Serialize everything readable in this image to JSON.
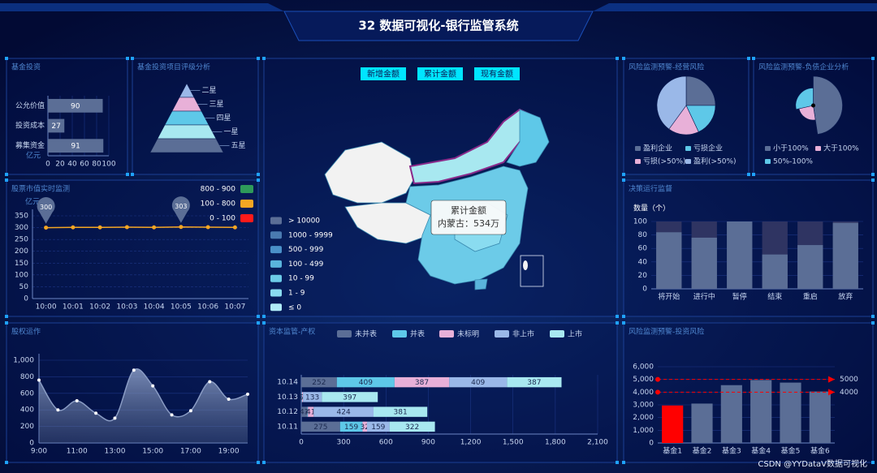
{
  "header": {
    "title": "32 数据可视化-银行监管系统"
  },
  "watermark": "CSDN @YYDataV数据可视化",
  "chart_data": [
    {
      "type": "bar",
      "orientation": "horizontal",
      "title": "基金投资",
      "categories": [
        "募集资金",
        "投资成本",
        "公允价值"
      ],
      "values": [
        91,
        27,
        90
      ],
      "unit": "亿元",
      "xlim": [
        0,
        100
      ],
      "xticks": [
        0,
        20,
        40,
        60,
        80,
        100
      ],
      "color": "#5b6e96",
      "labels": true,
      "label_color": "#ffffff"
    },
    {
      "type": "funnel",
      "title": "基金投资项目评级分析",
      "categories": [
        "二星",
        "三星",
        "四星",
        "一星",
        "五星"
      ],
      "values": [
        20,
        40,
        60,
        80,
        100
      ],
      "colors": [
        "#9ab8e8",
        "#e8b0d8",
        "#5ec8e8",
        "#a8e8f0",
        "#5b6e96"
      ]
    },
    {
      "type": "line",
      "title": "股票市值实时监测",
      "unit": "亿元",
      "categories": [
        "10:00",
        "10:01",
        "10:02",
        "10:03",
        "10:04",
        "10:05",
        "10:06",
        "10:07"
      ],
      "values": [
        300,
        301,
        301,
        302,
        301,
        303,
        302,
        301
      ],
      "ylim": [
        0,
        350
      ],
      "yticks": [
        0,
        50,
        100,
        150,
        200,
        250,
        300,
        350
      ],
      "color": "#f5a623",
      "grid": true,
      "pieces": [
        {
          "label": "800 - 900",
          "color": "#2e9a5a"
        },
        {
          "label": "100 - 800",
          "color": "#f5a623"
        },
        {
          "label": "0 - 100",
          "color": "#ff1a1a"
        }
      ]
    },
    {
      "type": "map",
      "buttons": [
        "新增金额",
        "累计金额",
        "现有金额"
      ],
      "pieces": [
        {
          "label": "> 10000",
          "color": "#5b6e96"
        },
        {
          "label": "1000 - 9999",
          "color": "#4a7ab0"
        },
        {
          "label": "500 - 999",
          "color": "#4a90c8"
        },
        {
          "label": "100 - 499",
          "color": "#5ab4dc"
        },
        {
          "label": "10 - 99",
          "color": "#6ccbe8"
        },
        {
          "label": "1 - 9",
          "color": "#8adcf0"
        },
        {
          "label": "≤ 0",
          "color": "#b0ecf8"
        }
      ],
      "tooltip": {
        "title": "累计金额",
        "text": "内蒙古：534万"
      }
    },
    {
      "type": "pie",
      "title": "风险监测预警-经营风险",
      "categories": [
        "盈利企业",
        "亏损企业",
        "亏损(>50%)",
        "盈利(>50%)"
      ],
      "values": [
        25,
        18,
        17,
        40
      ],
      "colors": [
        "#5b6e96",
        "#5ec8e8",
        "#e8b0d8",
        "#9ab8e8"
      ]
    },
    {
      "type": "pie",
      "rose": true,
      "title": "风险监测预警-负债企业分析",
      "categories": [
        "小于100%",
        "大于100%",
        "50%-100%"
      ],
      "values": [
        50,
        25,
        30
      ],
      "colors": [
        "#5b6e96",
        "#e8b0d8",
        "#5ec8e8"
      ]
    },
    {
      "type": "bar",
      "title": "决策运行监督",
      "ylabel": "数量（个）",
      "categories": [
        "将开始",
        "进行中",
        "暂停",
        "结束",
        "重启",
        "放弃"
      ],
      "values": [
        84,
        76,
        100,
        51,
        65,
        98
      ],
      "ylim": [
        0,
        100
      ],
      "yticks": [
        0,
        20,
        40,
        60,
        80,
        100
      ],
      "color": "#5b6e96",
      "background": "#2f3462"
    },
    {
      "type": "line",
      "area": true,
      "smooth": true,
      "title": "股权运作",
      "categories": [
        "9:00",
        null,
        "11:00",
        null,
        "13:00",
        null,
        "15:00",
        null,
        "17:00",
        null,
        "19:00",
        null
      ],
      "values": [
        760,
        400,
        510,
        360,
        300,
        880,
        690,
        340,
        390,
        740,
        530,
        590
      ],
      "ylim": [
        0,
        1000
      ],
      "yticks": [
        0,
        200,
        400,
        600,
        800,
        {
          "value": 1000,
          "label": "1,000"
        }
      ],
      "color": "#8a9cc4",
      "grid": true
    },
    {
      "type": "bar",
      "orientation": "horizontal",
      "stacked": true,
      "title": "资本监管-产权",
      "categories": [
        "10.11",
        "10.12",
        "10.13",
        "10.14"
      ],
      "series": [
        {
          "name": "未并表",
          "color": "#5b6e96",
          "values": [
            275,
            43,
            2,
            252
          ]
        },
        {
          "name": "并表",
          "color": "#5ec8e8",
          "values": [
            159,
            4,
            3,
            409
          ]
        },
        {
          "name": "未标明",
          "color": "#e8b0d8",
          "values": [
            32,
            41,
            7,
            387
          ]
        },
        {
          "name": "非上市",
          "color": "#9ab8e8",
          "values": [
            159,
            424,
            133,
            409
          ]
        },
        {
          "name": "上市",
          "color": "#a8e8f0",
          "values": [
            322,
            381,
            397,
            387
          ]
        }
      ],
      "xlim": [
        0,
        2100
      ],
      "xticks": [
        0,
        300,
        600,
        900,
        {
          "value": 1200,
          "label": "1,200"
        },
        {
          "value": 1500,
          "label": "1,500"
        },
        {
          "value": 1800,
          "label": "1,800"
        },
        {
          "value": 2100,
          "label": "2,100"
        }
      ],
      "labels": true,
      "label_color": "#1c2a50",
      "grid": true
    },
    {
      "type": "bar",
      "title": "风险监测预警-投资风险",
      "categories": [
        "基金1",
        "基金2",
        "基金3",
        "基金4",
        "基金5",
        "基金6"
      ],
      "values": [
        2950,
        3100,
        4550,
        4950,
        4750,
        4050
      ],
      "colors": [
        "#ff0000",
        "#5b6e96",
        "#5b6e96",
        "#5b6e96",
        "#5b6e96",
        "#5b6e96"
      ],
      "ylim": [
        0,
        6000
      ],
      "yticks": [
        0,
        {
          "value": 1000,
          "label": "1,000"
        },
        {
          "value": 2000,
          "label": "2,000"
        },
        {
          "value": 3000,
          "label": "3,000"
        },
        {
          "value": 4000,
          "label": "4,000"
        },
        {
          "value": 5000,
          "label": "5,000"
        },
        {
          "value": 6000,
          "label": "6,000"
        }
      ],
      "marklines": [
        5000,
        4000
      ],
      "markline_color": "#ff0000"
    }
  ]
}
